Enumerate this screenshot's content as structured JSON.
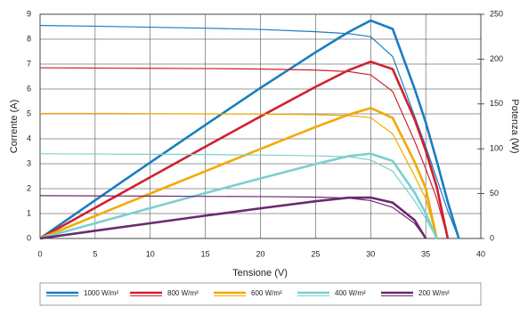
{
  "chart_data": {
    "type": "line",
    "xlabel": "Tensione (V)",
    "ylabel": "Corrente (A)",
    "y2label": "Potenza (W)",
    "x": [
      0,
      5,
      10,
      15,
      20,
      25,
      28,
      30,
      32,
      34,
      35,
      36,
      37,
      38
    ],
    "xlim": [
      0,
      40
    ],
    "xticks": [
      0,
      5,
      10,
      15,
      20,
      25,
      30,
      35,
      40
    ],
    "ylim": [
      0,
      9
    ],
    "yticks": [
      0,
      1,
      2,
      3,
      4,
      5,
      6,
      7,
      8,
      9
    ],
    "y2lim": [
      0,
      250
    ],
    "y2ticks": [
      0,
      50,
      100,
      150,
      200,
      250
    ],
    "grid": true,
    "legend": "bottom",
    "series": [
      {
        "name": "1000 W/m²",
        "color": "#1a7dc0",
        "values": [
          8.55,
          8.52,
          8.48,
          8.44,
          8.39,
          8.3,
          8.22,
          8.1,
          7.3,
          4.9,
          3.7,
          2.4,
          1.1,
          0
        ],
        "power": [
          0,
          42.6,
          84.8,
          126.6,
          167.8,
          207.5,
          230.2,
          243,
          233.6,
          166.6,
          129.5,
          86.4,
          40.7,
          0
        ]
      },
      {
        "name": "800 W/m²",
        "color": "#d0202e",
        "values": [
          6.85,
          6.84,
          6.83,
          6.82,
          6.8,
          6.76,
          6.7,
          6.57,
          5.9,
          3.9,
          2.8,
          1.6,
          0,
          null
        ],
        "power": [
          0,
          34.2,
          68.3,
          102.3,
          136,
          169,
          187.6,
          197.1,
          188.8,
          132.6,
          98,
          57.6,
          0,
          null
        ]
      },
      {
        "name": "600 W/m²",
        "color": "#f2a900",
        "values": [
          5.02,
          5.02,
          5.01,
          5.0,
          4.99,
          4.97,
          4.93,
          4.85,
          4.2,
          2.5,
          1.6,
          0,
          null,
          null
        ],
        "power": [
          0,
          25.1,
          50.1,
          75,
          99.8,
          124.3,
          138,
          145.5,
          134.4,
          85,
          56,
          0,
          null,
          null
        ]
      },
      {
        "name": "400 W/m²",
        "color": "#7ccfcf",
        "values": [
          3.4,
          3.39,
          3.38,
          3.37,
          3.35,
          3.32,
          3.28,
          3.15,
          2.7,
          1.5,
          0.8,
          0,
          null,
          null
        ],
        "power": [
          0,
          17,
          33.8,
          50.6,
          67,
          83,
          91.8,
          94.5,
          86.4,
          51,
          28,
          0,
          null,
          null
        ]
      },
      {
        "name": "200 W/m²",
        "color": "#6a2a6e",
        "values": [
          1.72,
          1.71,
          1.7,
          1.69,
          1.68,
          1.66,
          1.62,
          1.52,
          1.25,
          0.6,
          0,
          null,
          null,
          null
        ],
        "power": [
          0,
          8.6,
          17,
          25.4,
          33.6,
          41.5,
          45.4,
          45.6,
          40,
          20.4,
          0,
          null,
          null,
          null
        ]
      }
    ]
  }
}
